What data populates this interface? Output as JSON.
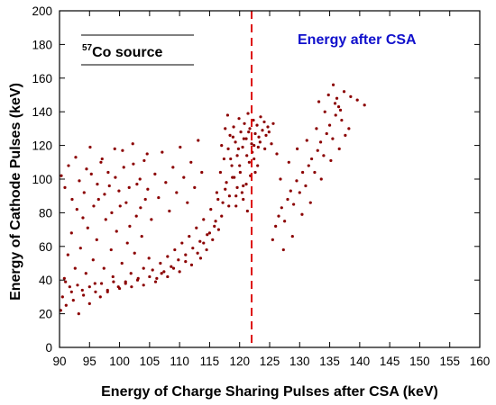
{
  "chart_data": {
    "type": "scatter",
    "xlabel": "Energy of Charge Sharing Pulses after CSA (keV)",
    "ylabel": "Energy of Cathode Pulses (keV)",
    "xlim": [
      90,
      160
    ],
    "ylim": [
      0,
      200
    ],
    "x_ticks": [
      "90",
      "95",
      "100",
      "105",
      "110",
      "115",
      "120",
      "125",
      "130",
      "135",
      "140",
      "145",
      "150",
      "155",
      "160"
    ],
    "y_ticks": [
      "0",
      "20",
      "40",
      "60",
      "80",
      "100",
      "120",
      "140",
      "160",
      "180",
      "200"
    ],
    "x_tick_values": [
      90,
      95,
      100,
      105,
      110,
      115,
      120,
      125,
      130,
      135,
      140,
      145,
      150,
      155,
      160
    ],
    "y_tick_values": [
      0,
      20,
      40,
      60,
      80,
      100,
      120,
      140,
      160,
      180,
      200
    ],
    "source_label_sup": "57",
    "source_label_text": "Co source",
    "annotation": "Energy after CSA",
    "vline_x": 122,
    "grid": false,
    "marker_color": "#8b0000",
    "vline_color": "#dd1111",
    "annotation_color": "#1010cc",
    "series": [
      {
        "points": [
          [
            90.2,
            22
          ],
          [
            90.5,
            30
          ],
          [
            90.8,
            41
          ],
          [
            91.1,
            25
          ],
          [
            91.4,
            55
          ],
          [
            91.7,
            36
          ],
          [
            92.0,
            68
          ],
          [
            92.3,
            28
          ],
          [
            92.6,
            47
          ],
          [
            92.9,
            82
          ],
          [
            93.2,
            20
          ],
          [
            93.5,
            59
          ],
          [
            93.8,
            34
          ],
          [
            94.1,
            92
          ],
          [
            94.4,
            44
          ],
          [
            94.7,
            71
          ],
          [
            95.0,
            26
          ],
          [
            95.3,
            103
          ],
          [
            95.6,
            52
          ],
          [
            95.9,
            38
          ],
          [
            96.2,
            64
          ],
          [
            96.5,
            88
          ],
          [
            96.8,
            30
          ],
          [
            97.1,
            112
          ],
          [
            97.4,
            47
          ],
          [
            97.7,
            76
          ],
          [
            98.0,
            33
          ],
          [
            98.3,
            96
          ],
          [
            98.6,
            58
          ],
          [
            98.9,
            42
          ],
          [
            99.2,
            118
          ],
          [
            99.5,
            69
          ],
          [
            99.8,
            36
          ],
          [
            100.1,
            84
          ],
          [
            100.4,
            50
          ],
          [
            100.7,
            107
          ],
          [
            101.0,
            39
          ],
          [
            101.3,
            62
          ],
          [
            101.6,
            95
          ],
          [
            101.9,
            44
          ],
          [
            102.2,
            121
          ],
          [
            102.5,
            56
          ],
          [
            102.8,
            78
          ],
          [
            103.1,
            41
          ],
          [
            103.4,
            100
          ],
          [
            103.7,
            66
          ],
          [
            104.0,
            47
          ],
          [
            104.3,
            88
          ],
          [
            104.6,
            115
          ],
          [
            104.9,
            53
          ],
          [
            90.3,
            102
          ],
          [
            90.9,
            95
          ],
          [
            91.5,
            108
          ],
          [
            92.1,
            88
          ],
          [
            92.7,
            113
          ],
          [
            93.3,
            99
          ],
          [
            93.9,
            77
          ],
          [
            94.5,
            106
          ],
          [
            95.1,
            119
          ],
          [
            95.7,
            84
          ],
          [
            96.3,
            97
          ],
          [
            96.9,
            110
          ],
          [
            97.5,
            91
          ],
          [
            98.1,
            104
          ],
          [
            98.7,
            80
          ],
          [
            99.3,
            101
          ],
          [
            99.9,
            93
          ],
          [
            100.5,
            117
          ],
          [
            101.1,
            86
          ],
          [
            101.7,
            72
          ],
          [
            102.3,
            109
          ],
          [
            102.9,
            97
          ],
          [
            103.5,
            83
          ],
          [
            104.1,
            111
          ],
          [
            104.7,
            94
          ],
          [
            105.3,
            76
          ],
          [
            105.9,
            103
          ],
          [
            106.5,
            89
          ],
          [
            107.1,
            116
          ],
          [
            107.7,
            98
          ],
          [
            108.3,
            81
          ],
          [
            108.9,
            107
          ],
          [
            109.5,
            92
          ],
          [
            110.1,
            119
          ],
          [
            110.7,
            101
          ],
          [
            111.3,
            86
          ],
          [
            111.9,
            110
          ],
          [
            112.5,
            95
          ],
          [
            113.1,
            123
          ],
          [
            113.7,
            104
          ],
          [
            91.0,
            39
          ],
          [
            92.0,
            33
          ],
          [
            93.0,
            37
          ],
          [
            94.0,
            31
          ],
          [
            95.0,
            36
          ],
          [
            96.0,
            33
          ],
          [
            97.0,
            38
          ],
          [
            98.0,
            34
          ],
          [
            99.0,
            39
          ],
          [
            100.0,
            35
          ],
          [
            101.0,
            38
          ],
          [
            102.0,
            36
          ],
          [
            103.0,
            40
          ],
          [
            104.0,
            37
          ],
          [
            105.0,
            42
          ],
          [
            106.0,
            39
          ],
          [
            107.0,
            44
          ],
          [
            108.0,
            42
          ],
          [
            109.0,
            47
          ],
          [
            110.0,
            45
          ],
          [
            111.0,
            51
          ],
          [
            112.0,
            49
          ],
          [
            113.0,
            56
          ],
          [
            113.5,
            53
          ],
          [
            114.0,
            62
          ],
          [
            114.5,
            58
          ],
          [
            115.0,
            68
          ],
          [
            115.5,
            64
          ],
          [
            116.0,
            75
          ],
          [
            116.5,
            70
          ],
          [
            105.5,
            46
          ],
          [
            106.2,
            41
          ],
          [
            106.8,
            50
          ],
          [
            107.4,
            45
          ],
          [
            108.0,
            54
          ],
          [
            108.6,
            48
          ],
          [
            109.2,
            58
          ],
          [
            109.8,
            52
          ],
          [
            110.4,
            62
          ],
          [
            111.0,
            55
          ],
          [
            111.6,
            66
          ],
          [
            112.2,
            59
          ],
          [
            112.8,
            71
          ],
          [
            113.4,
            63
          ],
          [
            114.0,
            76
          ],
          [
            114.6,
            67
          ],
          [
            115.2,
            82
          ],
          [
            115.8,
            72
          ],
          [
            116.4,
            88
          ],
          [
            117.0,
            78
          ],
          [
            117.6,
            94
          ],
          [
            118.2,
            84
          ],
          [
            118.8,
            101
          ],
          [
            119.4,
            90
          ],
          [
            120.0,
            108
          ],
          [
            120.6,
            96
          ],
          [
            121.2,
            114
          ],
          [
            121.8,
            102
          ],
          [
            122.4,
            120
          ],
          [
            123.0,
            108
          ],
          [
            116.2,
            92
          ],
          [
            116.8,
            104
          ],
          [
            117.4,
            112
          ],
          [
            117.8,
            98
          ],
          [
            118.1,
            118
          ],
          [
            118.4,
            126
          ],
          [
            118.7,
            108
          ],
          [
            119.0,
            131
          ],
          [
            119.3,
            122
          ],
          [
            119.6,
            114
          ],
          [
            119.9,
            136
          ],
          [
            120.2,
            128
          ],
          [
            120.5,
            119
          ],
          [
            120.8,
            133
          ],
          [
            121.1,
            124
          ],
          [
            121.4,
            139
          ],
          [
            121.7,
            130
          ],
          [
            122.0,
            121
          ],
          [
            122.3,
            135
          ],
          [
            122.6,
            127
          ],
          [
            122.9,
            132
          ],
          [
            123.2,
            125
          ],
          [
            123.5,
            137
          ],
          [
            123.8,
            129
          ],
          [
            124.1,
            134
          ],
          [
            124.4,
            126
          ],
          [
            124.7,
            131
          ],
          [
            117.0,
            120
          ],
          [
            117.6,
            130
          ],
          [
            118.0,
            138
          ],
          [
            118.5,
            112
          ],
          [
            119.1,
            101
          ],
          [
            119.6,
            95
          ],
          [
            120.1,
            104
          ],
          [
            120.6,
            88
          ],
          [
            121.1,
            97
          ],
          [
            121.6,
            110
          ],
          [
            122.1,
            116
          ],
          [
            122.6,
            104
          ],
          [
            123.1,
            119
          ],
          [
            117.2,
            86
          ],
          [
            118.3,
            90
          ],
          [
            119.4,
            84
          ],
          [
            120.4,
            92
          ],
          [
            121.3,
            81
          ],
          [
            118.9,
            125
          ],
          [
            119.8,
            118
          ],
          [
            120.7,
            124
          ],
          [
            121.5,
            128
          ],
          [
            122.4,
            112
          ],
          [
            123.4,
            122
          ],
          [
            124.2,
            118
          ],
          [
            124.9,
            128
          ],
          [
            125.3,
            121
          ],
          [
            125.6,
            133
          ],
          [
            125.5,
            64
          ],
          [
            126.0,
            72
          ],
          [
            126.5,
            78
          ],
          [
            127.0,
            83
          ],
          [
            127.5,
            75
          ],
          [
            128.0,
            88
          ],
          [
            128.5,
            93
          ],
          [
            129.0,
            85
          ],
          [
            129.5,
            99
          ],
          [
            130.0,
            92
          ],
          [
            130.5,
            104
          ],
          [
            131.0,
            96
          ],
          [
            131.5,
            108
          ],
          [
            132.0,
            112
          ],
          [
            132.5,
            104
          ],
          [
            133.0,
            117
          ],
          [
            133.5,
            122
          ],
          [
            134.0,
            114
          ],
          [
            134.5,
            127
          ],
          [
            135.0,
            132
          ],
          [
            135.5,
            124
          ],
          [
            136.0,
            138
          ],
          [
            136.5,
            143
          ],
          [
            137.0,
            135
          ],
          [
            126.8,
            100
          ],
          [
            128.2,
            110
          ],
          [
            129.6,
            118
          ],
          [
            131.2,
            123
          ],
          [
            132.8,
            130
          ],
          [
            134.2,
            140
          ],
          [
            133.2,
            146
          ],
          [
            134.8,
            150
          ],
          [
            135.6,
            156
          ],
          [
            136.2,
            148
          ],
          [
            137.4,
            152
          ],
          [
            138.5,
            149
          ],
          [
            139.6,
            147
          ],
          [
            140.8,
            144
          ],
          [
            135.9,
            145
          ],
          [
            136.8,
            141
          ],
          [
            127.3,
            58
          ],
          [
            128.8,
            66
          ],
          [
            130.4,
            79
          ],
          [
            131.8,
            86
          ],
          [
            133.6,
            100
          ],
          [
            135.2,
            111
          ],
          [
            136.6,
            118
          ],
          [
            137.6,
            126
          ],
          [
            138.2,
            130
          ],
          [
            126.2,
            115
          ]
        ]
      }
    ]
  }
}
